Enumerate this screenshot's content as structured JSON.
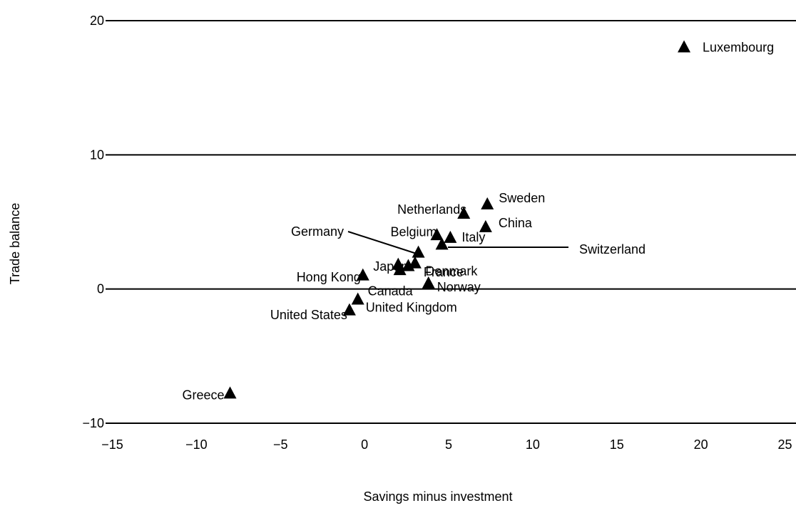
{
  "chart_data": {
    "type": "scatter",
    "title": "",
    "xlabel": "Savings minus investment",
    "ylabel": "Trade balance",
    "xlim": [
      -15,
      25
    ],
    "ylim": [
      -10,
      20
    ],
    "x_ticks": [
      -15,
      -10,
      -5,
      0,
      5,
      10,
      15,
      20,
      25
    ],
    "x_tick_labels": [
      "−15",
      "−10",
      "−5",
      "0",
      "5",
      "10",
      "15",
      "20",
      "25"
    ],
    "y_ticks": [
      -10,
      0,
      10,
      20
    ],
    "y_tick_labels": [
      "−10",
      "0",
      "10",
      "20"
    ],
    "grid": "horizontal lines at y ticks",
    "marker": "triangle",
    "marker_color": "#000000",
    "points": [
      {
        "label": "Luxembourg",
        "x": 19.0,
        "y": 18.0
      },
      {
        "label": "Sweden",
        "x": 7.3,
        "y": 6.3
      },
      {
        "label": "Netherlands",
        "x": 5.9,
        "y": 5.6
      },
      {
        "label": "China",
        "x": 7.2,
        "y": 4.6
      },
      {
        "label": "Belgium",
        "x": 4.3,
        "y": 4.0
      },
      {
        "label": "Italy",
        "x": 5.1,
        "y": 3.8
      },
      {
        "label": "Switzerland",
        "x": 4.6,
        "y": 3.3
      },
      {
        "label": "Germany",
        "x": 3.2,
        "y": 2.7
      },
      {
        "label": "France",
        "x": 3.0,
        "y": 1.9
      },
      {
        "label": "Japan",
        "x": 2.0,
        "y": 1.8
      },
      {
        "label": "Denmark",
        "x": 2.6,
        "y": 1.7
      },
      {
        "label": "Canada",
        "x": 2.1,
        "y": 1.4
      },
      {
        "label": "Hong Kong",
        "x": -0.1,
        "y": 1.0
      },
      {
        "label": "Norway",
        "x": 3.8,
        "y": 0.4
      },
      {
        "label": "United Kingdom",
        "x": -0.4,
        "y": -0.8
      },
      {
        "label": "United States",
        "x": -0.9,
        "y": -1.6
      },
      {
        "label": "Greece",
        "x": -8.0,
        "y": -7.8
      }
    ]
  }
}
